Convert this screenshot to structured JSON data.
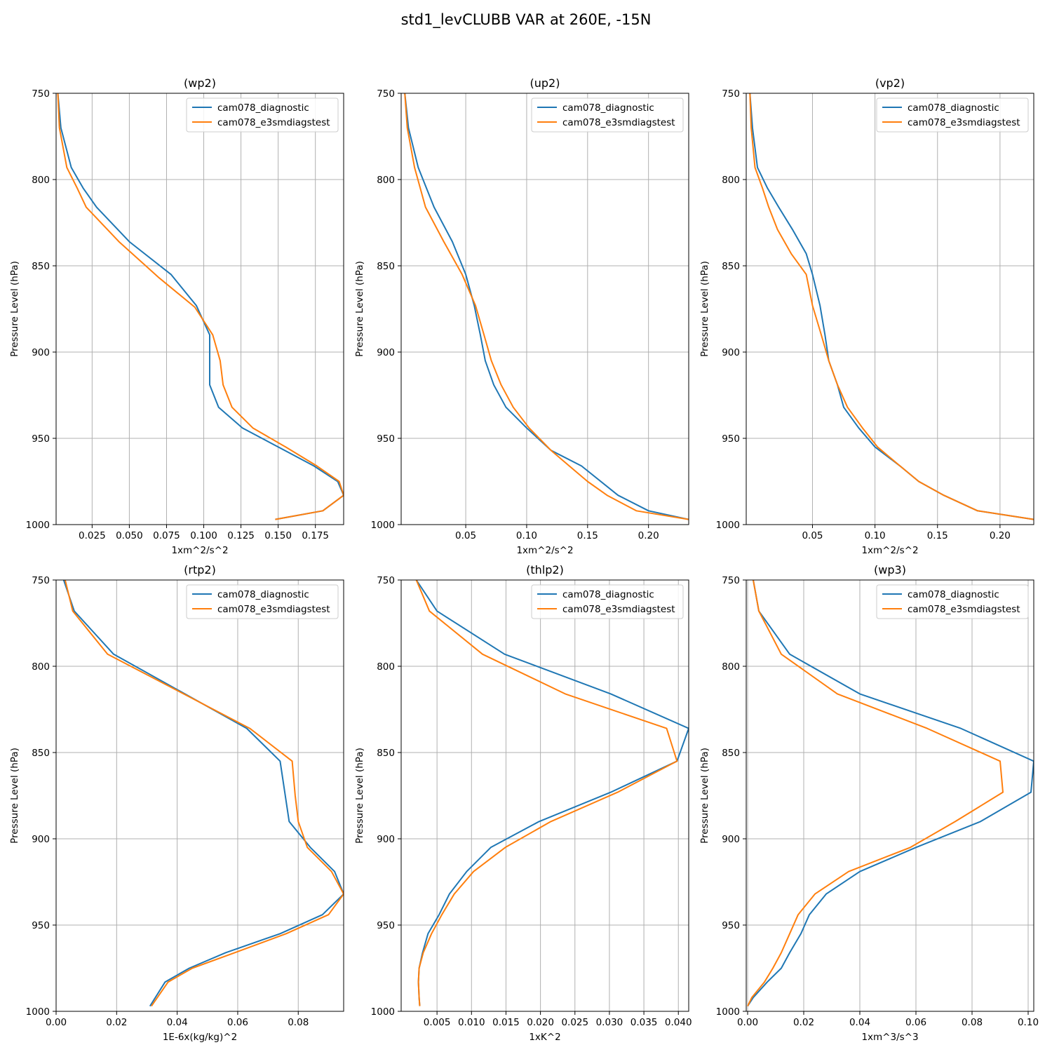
{
  "figure": {
    "title": "std1_levCLUBB VAR at 260E, -15N",
    "legend_labels": [
      "cam078_diagnostic",
      "cam078_e3smdiagstest"
    ],
    "colors": {
      "series1": "#1f77b4",
      "series2": "#ff7f0e",
      "grid": "#b0b0b0"
    }
  },
  "chart_data": [
    {
      "type": "line",
      "title": "(wp2)",
      "xlabel": "1xm^2/s^2",
      "ylabel": "Pressure Level (hPa)",
      "xlim": [
        0.0008,
        0.194
      ],
      "ylim": [
        1000,
        750
      ],
      "xticks": [
        0.025,
        0.05,
        0.075,
        0.1,
        0.125,
        0.15,
        0.175
      ],
      "xtick_labels": [
        "0.025",
        "0.050",
        "0.075",
        "0.100",
        "0.125",
        "0.150",
        "0.175"
      ],
      "yticks": [
        750,
        800,
        850,
        900,
        950,
        1000
      ],
      "ytick_labels": [
        "750",
        "800",
        "850",
        "900",
        "950",
        "1000"
      ],
      "grid": true,
      "legend_position": "upper right",
      "series": [
        {
          "name": "cam078_diagnostic",
          "x": [
            0.002,
            0.004,
            0.011,
            0.019,
            0.028,
            0.05,
            0.078,
            0.095,
            0.104,
            0.104,
            0.104,
            0.11,
            0.126,
            0.15,
            0.174,
            0.19,
            0.194,
            0.18,
            0.148
          ],
          "y": [
            750,
            770,
            793,
            805,
            816,
            836,
            855,
            873,
            890,
            905,
            919,
            932,
            944,
            955,
            966,
            975,
            983,
            992,
            997
          ]
        },
        {
          "name": "cam078_e3smdiagstest",
          "x": [
            0.002,
            0.003,
            0.008,
            0.015,
            0.021,
            0.043,
            0.07,
            0.094,
            0.106,
            0.111,
            0.113,
            0.119,
            0.133,
            0.155,
            0.176,
            0.191,
            0.194,
            0.18,
            0.148
          ],
          "y": [
            750,
            770,
            793,
            805,
            816,
            836,
            857,
            874,
            890,
            905,
            919,
            932,
            944,
            955,
            966,
            975,
            983,
            992,
            997
          ]
        }
      ]
    },
    {
      "type": "line",
      "title": "(up2)",
      "xlabel": "1xm^2/s^2",
      "ylabel": "Pressure Level (hPa)",
      "xlim": [
        -0.003,
        0.233
      ],
      "ylim": [
        1000,
        750
      ],
      "xticks": [
        0.05,
        0.1,
        0.15,
        0.2
      ],
      "xtick_labels": [
        "0.05",
        "0.10",
        "0.15",
        "0.20"
      ],
      "yticks": [
        750,
        800,
        850,
        900,
        950,
        1000
      ],
      "ytick_labels": [
        "750",
        "800",
        "850",
        "900",
        "950",
        "1000"
      ],
      "grid": true,
      "legend_position": "upper right",
      "series": [
        {
          "name": "cam078_diagnostic",
          "x": [
            0.0,
            0.003,
            0.011,
            0.024,
            0.039,
            0.05,
            0.057,
            0.062,
            0.066,
            0.073,
            0.083,
            0.1,
            0.12,
            0.145,
            0.175,
            0.2,
            0.233
          ],
          "y": [
            750,
            770,
            793,
            816,
            836,
            855,
            873,
            890,
            905,
            919,
            932,
            944,
            957,
            966,
            983,
            992,
            997
          ]
        },
        {
          "name": "cam078_e3smdiagstest",
          "x": [
            0.0,
            0.002,
            0.008,
            0.017,
            0.032,
            0.047,
            0.058,
            0.065,
            0.071,
            0.079,
            0.089,
            0.102,
            0.12,
            0.135,
            0.15,
            0.166,
            0.19,
            0.233
          ],
          "y": [
            750,
            770,
            793,
            816,
            836,
            855,
            873,
            890,
            905,
            919,
            932,
            944,
            957,
            966,
            975,
            983,
            992,
            997
          ]
        }
      ]
    },
    {
      "type": "line",
      "title": "(vp2)",
      "xlabel": "1xm^2/s^2",
      "ylabel": "Pressure Level (hPa)",
      "xlim": [
        -0.003,
        0.227
      ],
      "ylim": [
        1000,
        750
      ],
      "xticks": [
        0.05,
        0.1,
        0.15,
        0.2
      ],
      "xtick_labels": [
        "0.05",
        "0.10",
        "0.15",
        "0.20"
      ],
      "yticks": [
        750,
        800,
        850,
        900,
        950,
        1000
      ],
      "ytick_labels": [
        "750",
        "800",
        "850",
        "900",
        "950",
        "1000"
      ],
      "grid": true,
      "legend_position": "upper right",
      "series": [
        {
          "name": "cam078_diagnostic",
          "x": [
            0.0,
            0.002,
            0.006,
            0.014,
            0.023,
            0.034,
            0.045,
            0.05,
            0.056,
            0.06,
            0.063,
            0.07,
            0.075,
            0.087,
            0.1,
            0.12,
            0.135,
            0.155,
            0.182,
            0.227
          ],
          "y": [
            750,
            770,
            793,
            805,
            816,
            829,
            843,
            855,
            873,
            890,
            905,
            919,
            932,
            944,
            955,
            966,
            975,
            983,
            992,
            997
          ]
        },
        {
          "name": "cam078_e3smdiagstest",
          "x": [
            0.0,
            0.001,
            0.004,
            0.01,
            0.015,
            0.022,
            0.033,
            0.045,
            0.05,
            0.057,
            0.063,
            0.07,
            0.078,
            0.09,
            0.102,
            0.12,
            0.135,
            0.155,
            0.182,
            0.227
          ],
          "y": [
            750,
            770,
            793,
            805,
            816,
            829,
            843,
            855,
            873,
            890,
            905,
            919,
            932,
            944,
            955,
            966,
            975,
            983,
            992,
            997
          ]
        }
      ]
    },
    {
      "type": "line",
      "title": "(rtp2)",
      "xlabel": "1E-6x(kg/kg)^2",
      "ylabel": "Pressure Level (hPa)",
      "xlim": [
        0.0,
        0.095
      ],
      "ylim": [
        1000,
        750
      ],
      "xticks": [
        0.0,
        0.02,
        0.04,
        0.06,
        0.08
      ],
      "xtick_labels": [
        "0.00",
        "0.02",
        "0.04",
        "0.06",
        "0.08"
      ],
      "yticks": [
        750,
        800,
        850,
        900,
        950,
        1000
      ],
      "ytick_labels": [
        "750",
        "800",
        "850",
        "900",
        "950",
        "1000"
      ],
      "grid": true,
      "legend_position": "upper right",
      "series": [
        {
          "name": "cam078_diagnostic",
          "x": [
            0.0025,
            0.006,
            0.019,
            0.063,
            0.074,
            0.077,
            0.084,
            0.092,
            0.095,
            0.088,
            0.074,
            0.056,
            0.044,
            0.036,
            0.031
          ],
          "y": [
            750,
            768,
            793,
            836,
            855,
            890,
            905,
            919,
            932,
            944,
            955,
            966,
            975,
            983,
            997
          ]
        },
        {
          "name": "cam078_e3smdiagstest",
          "x": [
            0.003,
            0.0055,
            0.017,
            0.064,
            0.078,
            0.079,
            0.08,
            0.083,
            0.091,
            0.095,
            0.09,
            0.076,
            0.059,
            0.045,
            0.037,
            0.0315
          ],
          "y": [
            750,
            768,
            793,
            836,
            855,
            875,
            890,
            905,
            919,
            932,
            944,
            955,
            966,
            975,
            983,
            997
          ]
        }
      ]
    },
    {
      "type": "line",
      "title": "(thlp2)",
      "xlabel": "1xK^2",
      "ylabel": "Pressure Level (hPa)",
      "xlim": [
        -0.0002,
        0.0415
      ],
      "ylim": [
        1000,
        750
      ],
      "xticks": [
        0.005,
        0.01,
        0.015,
        0.02,
        0.025,
        0.03,
        0.035,
        0.04
      ],
      "xtick_labels": [
        "0.005",
        "0.010",
        "0.015",
        "0.020",
        "0.025",
        "0.030",
        "0.035",
        "0.040"
      ],
      "yticks": [
        750,
        800,
        850,
        900,
        950,
        1000
      ],
      "ytick_labels": [
        "750",
        "800",
        "850",
        "900",
        "950",
        "1000"
      ],
      "grid": true,
      "legend_position": "upper right",
      "series": [
        {
          "name": "cam078_diagnostic",
          "x": [
            0.002,
            0.005,
            0.0148,
            0.0302,
            0.0415,
            0.0398,
            0.0302,
            0.0198,
            0.0128,
            0.0093,
            0.0068,
            0.0053,
            0.0037,
            0.0029,
            0.0024,
            0.0023,
            0.0024,
            0.0025
          ],
          "y": [
            750,
            768,
            793,
            816,
            836,
            855,
            873,
            890,
            905,
            919,
            932,
            944,
            955,
            966,
            975,
            983,
            992,
            997
          ]
        },
        {
          "name": "cam078_e3smdiagstest",
          "x": [
            0.002,
            0.0039,
            0.0116,
            0.0236,
            0.0383,
            0.0398,
            0.0312,
            0.0215,
            0.0149,
            0.0103,
            0.0075,
            0.0057,
            0.0042,
            0.003,
            0.0024,
            0.0023,
            0.0024,
            0.0025
          ],
          "y": [
            750,
            768,
            793,
            816,
            836,
            855,
            873,
            890,
            905,
            919,
            932,
            944,
            955,
            966,
            975,
            983,
            992,
            997
          ]
        }
      ]
    },
    {
      "type": "line",
      "title": "(wp3)",
      "xlabel": "1xm^3/s^3",
      "ylabel": "Pressure Level (hPa)",
      "xlim": [
        -0.0005,
        0.102
      ],
      "ylim": [
        1000,
        750
      ],
      "xticks": [
        0.0,
        0.02,
        0.04,
        0.06,
        0.08,
        0.1
      ],
      "xtick_labels": [
        "0.00",
        "0.02",
        "0.04",
        "0.06",
        "0.08",
        "0.10"
      ],
      "yticks": [
        750,
        800,
        850,
        900,
        950,
        1000
      ],
      "ytick_labels": [
        "750",
        "800",
        "850",
        "900",
        "950",
        "1000"
      ],
      "grid": true,
      "legend_position": "upper right",
      "series": [
        {
          "name": "cam078_diagnostic",
          "x": [
            0.002,
            0.004,
            0.015,
            0.04,
            0.076,
            0.102,
            0.101,
            0.083,
            0.06,
            0.04,
            0.028,
            0.022,
            0.019,
            0.015,
            0.012,
            0.007,
            0.002,
            0.0
          ],
          "y": [
            750,
            768,
            793,
            816,
            836,
            855,
            873,
            890,
            905,
            919,
            932,
            944,
            955,
            966,
            975,
            983,
            992,
            997
          ]
        },
        {
          "name": "cam078_e3smdiagstest",
          "x": [
            0.002,
            0.004,
            0.012,
            0.032,
            0.064,
            0.09,
            0.091,
            0.074,
            0.058,
            0.036,
            0.024,
            0.018,
            0.015,
            0.012,
            0.009,
            0.006,
            0.0015,
            0.0
          ],
          "y": [
            750,
            768,
            793,
            816,
            836,
            855,
            873,
            890,
            905,
            919,
            932,
            944,
            955,
            966,
            975,
            983,
            992,
            997
          ]
        }
      ]
    }
  ]
}
